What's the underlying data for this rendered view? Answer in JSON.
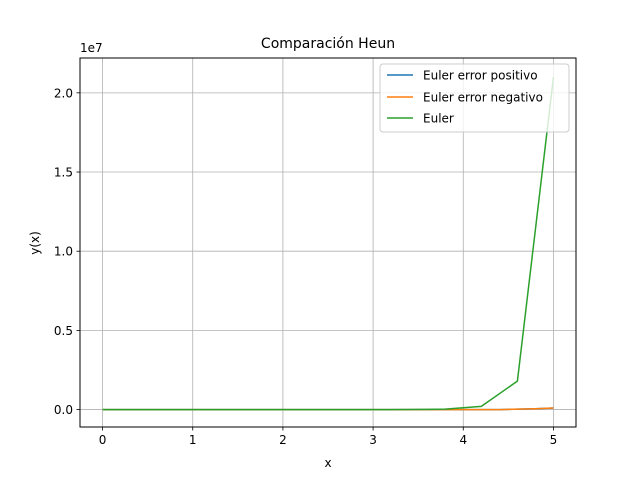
{
  "chart_data": {
    "type": "line",
    "title": "Comparación Heun",
    "xlabel": "x",
    "ylabel": "y(x)",
    "y_offset_label": "1e7",
    "xlim": [
      -0.25,
      5.25
    ],
    "ylim": [
      -1.1,
      22.2
    ],
    "y_scale": 10000000,
    "x_ticks": [
      0,
      1,
      2,
      3,
      4,
      5
    ],
    "x_tick_labels": [
      "0",
      "1",
      "2",
      "3",
      "4",
      "5"
    ],
    "y_ticks": [
      0,
      5,
      10,
      15,
      20
    ],
    "y_tick_labels": [
      "0.0",
      "0.5",
      "1.0",
      "1.5",
      "2.0"
    ],
    "grid": true,
    "legend_position": "top-right",
    "series": [
      {
        "name": "Euler error positivo",
        "color": "#1f77b4",
        "x": [
          0,
          0.4,
          0.8,
          1.2,
          1.6,
          2.0,
          2.4,
          2.8,
          3.2,
          3.6,
          4.0,
          4.4,
          4.8,
          5.0
        ],
        "values": [
          0,
          0,
          0,
          0,
          0,
          0,
          0,
          0,
          0,
          0,
          0,
          0,
          0.05,
          0.1
        ]
      },
      {
        "name": "Euler error negativo",
        "color": "#ff7f0e",
        "x": [
          0,
          0.4,
          0.8,
          1.2,
          1.6,
          2.0,
          2.4,
          2.8,
          3.2,
          3.6,
          4.0,
          4.4,
          4.8,
          5.0
        ],
        "values": [
          0,
          0,
          0,
          0,
          0,
          0,
          0,
          0,
          0,
          0,
          0,
          0,
          0.05,
          0.1
        ]
      },
      {
        "name": "Euler",
        "color": "#2ca02c",
        "x": [
          0,
          0.4,
          0.8,
          1.2,
          1.6,
          2.0,
          2.4,
          2.8,
          3.2,
          3.6,
          3.8,
          4.2,
          4.6,
          5.0
        ],
        "values": [
          0,
          0,
          0,
          0,
          0,
          0,
          0,
          0,
          0,
          0.01,
          0.03,
          0.2,
          1.8,
          21.0
        ]
      }
    ]
  }
}
